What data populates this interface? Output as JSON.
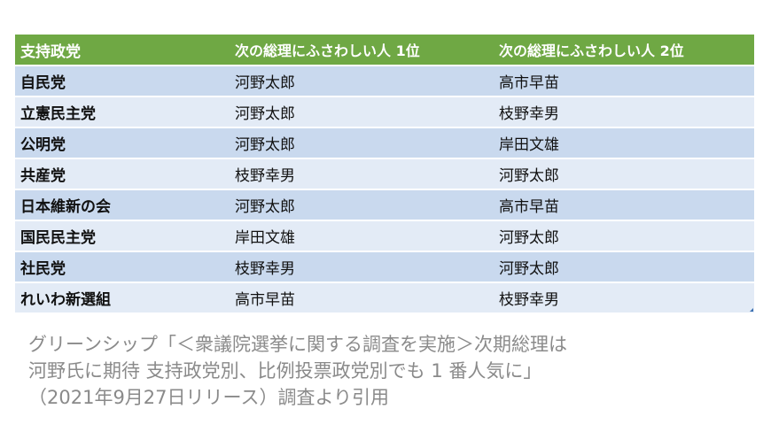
{
  "table": {
    "headers": [
      "支持政党",
      "次の総理にふさわしい人 1位",
      "次の総理にふさわしい人 2位"
    ],
    "rows": [
      [
        "自民党",
        "河野太郎",
        "高市早苗"
      ],
      [
        "立憲民主党",
        "河野太郎",
        "枝野幸男"
      ],
      [
        "公明党",
        "河野太郎",
        "岸田文雄"
      ],
      [
        "共産党",
        "枝野幸男",
        "河野太郎"
      ],
      [
        "日本維新の会",
        "河野太郎",
        "高市早苗"
      ],
      [
        "国民民主党",
        "岸田文雄",
        "河野太郎"
      ],
      [
        "社民党",
        "枝野幸男",
        "河野太郎"
      ],
      [
        "れいわ新選組",
        "高市早苗",
        "枝野幸男"
      ]
    ]
  },
  "caption": {
    "line1": "グリーンシップ「＜衆議院選挙に関する調査を実施＞次期総理は",
    "line2": "河野氏に期待 支持政党別、比例投票政党別でも 1 番人気に」",
    "line3": "（2021年9月27日リリース）調査より引用"
  },
  "colors": {
    "header_bg": "#6fa844",
    "row_odd_bg": "#c9d9ee",
    "row_even_bg": "#e3ebf6",
    "caption_text": "#8a8a8a"
  }
}
